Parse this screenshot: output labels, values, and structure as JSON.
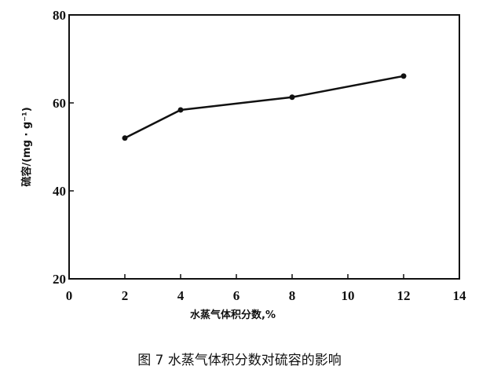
{
  "chart_data": {
    "type": "line",
    "title": "",
    "caption": "图 7   水蒸气体积分数对硫容的影响",
    "xlabel": "水蒸气体积分数,%",
    "ylabel": "硫容/(mg · g⁻¹)",
    "xlim": [
      0,
      14
    ],
    "ylim": [
      20,
      80
    ],
    "xticks": [
      0,
      2,
      4,
      6,
      8,
      10,
      12,
      14
    ],
    "yticks": [
      20,
      40,
      60,
      80
    ],
    "grid": false,
    "series": [
      {
        "x": [
          2,
          4,
          8,
          12
        ],
        "y": [
          52.0,
          58.4,
          61.3,
          66.1
        ],
        "color": "#111111"
      }
    ]
  }
}
